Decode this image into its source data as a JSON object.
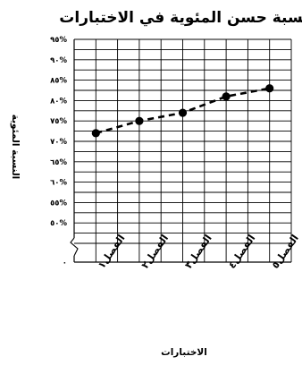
{
  "chart_data": {
    "type": "line",
    "title": "نسبة حسن المئوية في الاختبارات",
    "xlabel": "الاختبارات",
    "ylabel": "النسبة المئوية",
    "categories": [
      "الفصل١",
      "الفصل٢",
      "الفصل٣",
      "الفصل٤",
      "الفصل٥"
    ],
    "values": [
      72,
      75,
      77,
      81,
      83
    ],
    "yticks": [
      0,
      50,
      55,
      60,
      65,
      70,
      75,
      80,
      85,
      90,
      95
    ],
    "ytick_labels": [
      "٠",
      "٥٠%",
      "٥٥%",
      "٦٠%",
      "٦٥%",
      "٧٠%",
      "٧٥%",
      "٨٠%",
      "٨٥%",
      "٩٠%",
      "٩٥%"
    ],
    "ylim": [
      45,
      95
    ],
    "axis_break": true,
    "grid": true,
    "line_style": "dashed",
    "marker": "circle",
    "line_color": "#000000"
  }
}
